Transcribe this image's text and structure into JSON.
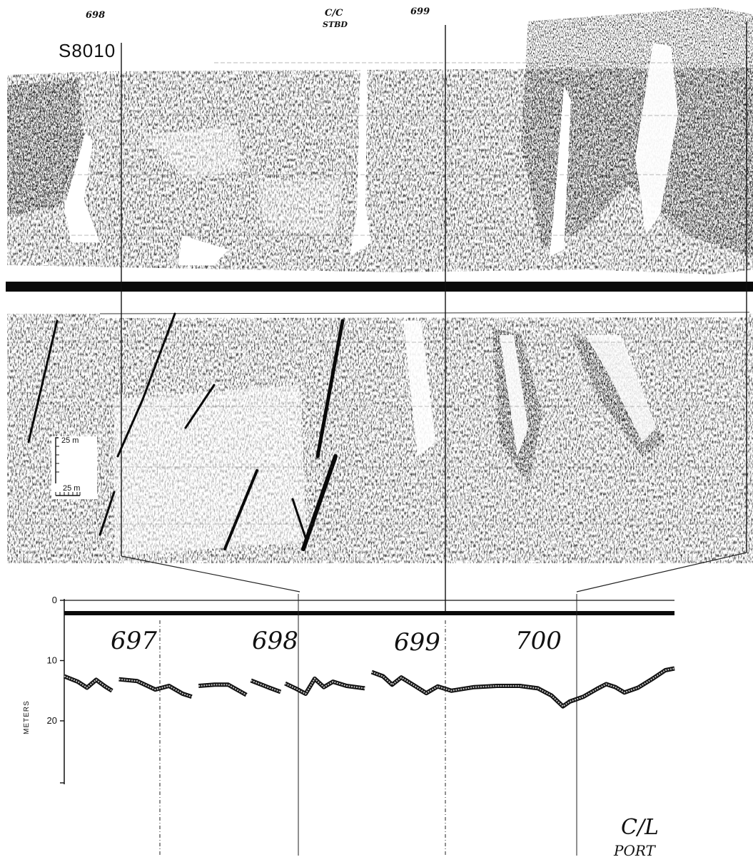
{
  "sonograph": {
    "line_id": "S8010",
    "top_fix_marks": [
      "698",
      "699"
    ],
    "course_change_note": [
      "C/C",
      "STBD"
    ]
  },
  "scale_bars": {
    "vertical": "25 m",
    "horizontal": "25 m"
  },
  "profile": {
    "fix_numbers": [
      "697",
      "698",
      "699",
      "700"
    ],
    "axis_title": "METERS",
    "y_ticks": [
      "0",
      "10",
      "20"
    ],
    "ylim": [
      0,
      27
    ],
    "note": [
      "C/L",
      "PORT"
    ],
    "depth_trace": [
      {
        "x": 0.0,
        "depth": 12.6
      },
      {
        "x": 0.3,
        "depth": 13.5
      },
      {
        "x": 0.5,
        "depth": 14.5
      },
      {
        "x": 0.7,
        "depth": 13.2
      },
      {
        "x": 0.9,
        "depth": 14.3
      },
      {
        "x": 1.05,
        "depth": 15.0
      },
      {
        "x": 1.15,
        "depth": null
      },
      {
        "x": 1.2,
        "depth": 13.1
      },
      {
        "x": 1.6,
        "depth": 13.4
      },
      {
        "x": 2.0,
        "depth": 14.8
      },
      {
        "x": 2.3,
        "depth": 14.2
      },
      {
        "x": 2.6,
        "depth": 15.5
      },
      {
        "x": 2.8,
        "depth": 16.0
      },
      {
        "x": 2.9,
        "depth": null
      },
      {
        "x": 2.95,
        "depth": 14.2
      },
      {
        "x": 3.3,
        "depth": 14.0
      },
      {
        "x": 3.6,
        "depth": 14.0
      },
      {
        "x": 4.0,
        "depth": 15.7
      },
      {
        "x": 4.05,
        "depth": null
      },
      {
        "x": 4.1,
        "depth": 13.3
      },
      {
        "x": 4.5,
        "depth": 14.5
      },
      {
        "x": 4.75,
        "depth": 15.2
      },
      {
        "x": 4.8,
        "depth": null
      },
      {
        "x": 4.85,
        "depth": 13.8
      },
      {
        "x": 5.1,
        "depth": 14.7
      },
      {
        "x": 5.3,
        "depth": 15.5
      },
      {
        "x": 5.5,
        "depth": 13.0
      },
      {
        "x": 5.7,
        "depth": 14.4
      },
      {
        "x": 5.9,
        "depth": 13.5
      },
      {
        "x": 6.2,
        "depth": 14.2
      },
      {
        "x": 6.6,
        "depth": 14.6
      },
      {
        "x": 6.7,
        "depth": null
      },
      {
        "x": 6.75,
        "depth": 11.9
      },
      {
        "x": 7.0,
        "depth": 12.6
      },
      {
        "x": 7.2,
        "depth": 14.0
      },
      {
        "x": 7.4,
        "depth": 12.8
      },
      {
        "x": 7.7,
        "depth": 14.2
      },
      {
        "x": 7.95,
        "depth": 15.4
      },
      {
        "x": 8.2,
        "depth": 14.3
      },
      {
        "x": 8.5,
        "depth": 15.0
      },
      {
        "x": 9.0,
        "depth": 14.4
      },
      {
        "x": 9.5,
        "depth": 14.2
      },
      {
        "x": 10.0,
        "depth": 14.2
      },
      {
        "x": 10.4,
        "depth": 14.6
      },
      {
        "x": 10.7,
        "depth": 15.8
      },
      {
        "x": 10.95,
        "depth": 17.6
      },
      {
        "x": 11.1,
        "depth": 16.8
      },
      {
        "x": 11.4,
        "depth": 16.0
      },
      {
        "x": 11.7,
        "depth": 14.7
      },
      {
        "x": 11.9,
        "depth": 13.9
      },
      {
        "x": 12.1,
        "depth": 14.4
      },
      {
        "x": 12.3,
        "depth": 15.3
      },
      {
        "x": 12.6,
        "depth": 14.5
      },
      {
        "x": 12.9,
        "depth": 13.1
      },
      {
        "x": 13.2,
        "depth": 11.6
      },
      {
        "x": 13.4,
        "depth": 11.3
      }
    ]
  }
}
